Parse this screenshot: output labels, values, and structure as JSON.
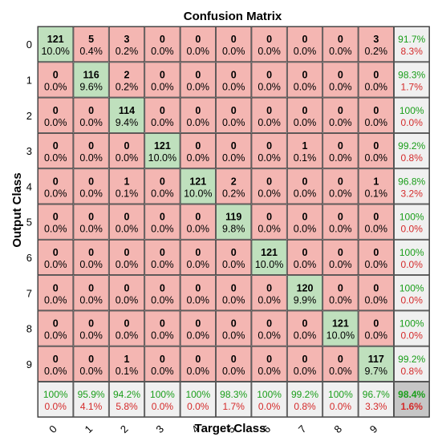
{
  "chart_data": {
    "type": "heatmap",
    "title": "Confusion Matrix",
    "xlabel": "Target Class",
    "ylabel": "Output Class",
    "labels": [
      "0",
      "1",
      "2",
      "3",
      "4",
      "5",
      "6",
      "7",
      "8",
      "9"
    ],
    "matrix": [
      [
        121,
        5,
        3,
        0,
        0,
        0,
        0,
        0,
        0,
        3
      ],
      [
        0,
        116,
        2,
        0,
        0,
        0,
        0,
        0,
        0,
        0
      ],
      [
        0,
        0,
        114,
        0,
        0,
        0,
        0,
        0,
        0,
        0
      ],
      [
        0,
        0,
        0,
        121,
        0,
        0,
        0,
        1,
        0,
        0
      ],
      [
        0,
        0,
        1,
        0,
        121,
        2,
        0,
        0,
        0,
        1
      ],
      [
        0,
        0,
        0,
        0,
        0,
        119,
        0,
        0,
        0,
        0
      ],
      [
        0,
        0,
        0,
        0,
        0,
        0,
        121,
        0,
        0,
        0
      ],
      [
        0,
        0,
        0,
        0,
        0,
        0,
        0,
        120,
        0,
        0
      ],
      [
        0,
        0,
        0,
        0,
        0,
        0,
        0,
        0,
        121,
        0
      ],
      [
        0,
        0,
        1,
        0,
        0,
        0,
        0,
        0,
        0,
        117
      ]
    ],
    "matrix_percent": [
      [
        "10.0%",
        "0.4%",
        "0.2%",
        "0.0%",
        "0.0%",
        "0.0%",
        "0.0%",
        "0.0%",
        "0.0%",
        "0.2%"
      ],
      [
        "0.0%",
        "9.6%",
        "0.2%",
        "0.0%",
        "0.0%",
        "0.0%",
        "0.0%",
        "0.0%",
        "0.0%",
        "0.0%"
      ],
      [
        "0.0%",
        "0.0%",
        "9.4%",
        "0.0%",
        "0.0%",
        "0.0%",
        "0.0%",
        "0.0%",
        "0.0%",
        "0.0%"
      ],
      [
        "0.0%",
        "0.0%",
        "0.0%",
        "10.0%",
        "0.0%",
        "0.0%",
        "0.0%",
        "0.1%",
        "0.0%",
        "0.0%"
      ],
      [
        "0.0%",
        "0.0%",
        "0.1%",
        "0.0%",
        "10.0%",
        "0.2%",
        "0.0%",
        "0.0%",
        "0.0%",
        "0.1%"
      ],
      [
        "0.0%",
        "0.0%",
        "0.0%",
        "0.0%",
        "0.0%",
        "9.8%",
        "0.0%",
        "0.0%",
        "0.0%",
        "0.0%"
      ],
      [
        "0.0%",
        "0.0%",
        "0.0%",
        "0.0%",
        "0.0%",
        "0.0%",
        "10.0%",
        "0.0%",
        "0.0%",
        "0.0%"
      ],
      [
        "0.0%",
        "0.0%",
        "0.0%",
        "0.0%",
        "0.0%",
        "0.0%",
        "0.0%",
        "9.9%",
        "0.0%",
        "0.0%"
      ],
      [
        "0.0%",
        "0.0%",
        "0.0%",
        "0.0%",
        "0.0%",
        "0.0%",
        "0.0%",
        "0.0%",
        "10.0%",
        "0.0%"
      ],
      [
        "0.0%",
        "0.0%",
        "0.1%",
        "0.0%",
        "0.0%",
        "0.0%",
        "0.0%",
        "0.0%",
        "0.0%",
        "9.7%"
      ]
    ],
    "row_summary": [
      [
        "91.7%",
        "8.3%"
      ],
      [
        "98.3%",
        "1.7%"
      ],
      [
        "100%",
        "0.0%"
      ],
      [
        "99.2%",
        "0.8%"
      ],
      [
        "96.8%",
        "3.2%"
      ],
      [
        "100%",
        "0.0%"
      ],
      [
        "100%",
        "0.0%"
      ],
      [
        "100%",
        "0.0%"
      ],
      [
        "100%",
        "0.0%"
      ],
      [
        "99.2%",
        "0.8%"
      ]
    ],
    "col_summary": [
      [
        "100%",
        "0.0%"
      ],
      [
        "95.9%",
        "4.1%"
      ],
      [
        "94.2%",
        "5.8%"
      ],
      [
        "100%",
        "0.0%"
      ],
      [
        "100%",
        "0.0%"
      ],
      [
        "98.3%",
        "1.7%"
      ],
      [
        "100%",
        "0.0%"
      ],
      [
        "99.2%",
        "0.8%"
      ],
      [
        "100%",
        "0.0%"
      ],
      [
        "96.7%",
        "3.3%"
      ]
    ],
    "overall": [
      "98.4%",
      "1.6%"
    ],
    "colors": {
      "diagonal": "#bfe0bd",
      "off_diagonal": "#f4b6b2",
      "summary": "#f0f0f0",
      "overall": "#c6c6c6",
      "correct_text": "#1a9e1a",
      "error_text": "#d42a2a"
    }
  }
}
